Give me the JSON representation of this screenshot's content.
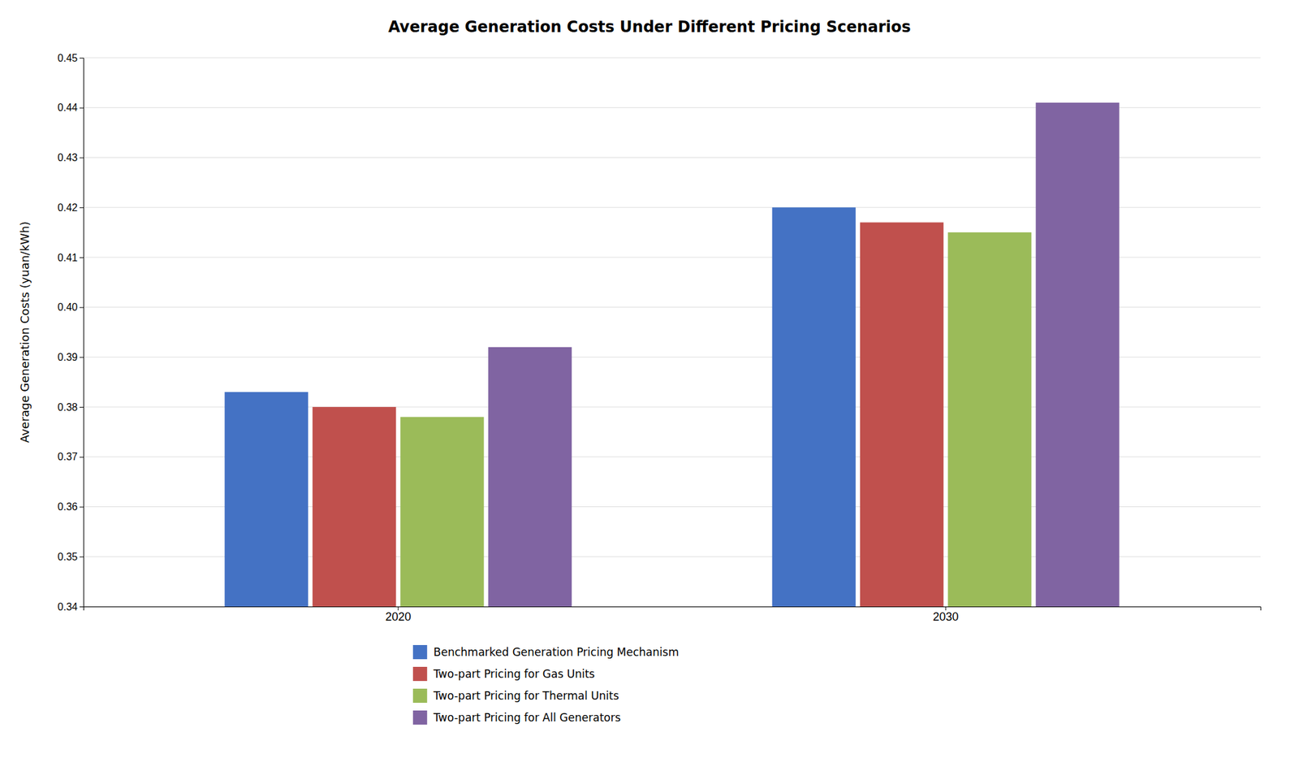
{
  "chart_data": {
    "type": "bar",
    "title": "Average Generation Costs Under Different Pricing Scenarios",
    "ylabel": "Average Generation Costs (yuan/kWh)",
    "categories": [
      "2020",
      "2030"
    ],
    "series": [
      {
        "name": "Benchmarked Generation Pricing Mechanism",
        "color": "#4472C4",
        "values": [
          0.383,
          0.42
        ]
      },
      {
        "name": "Two-part Pricing for Gas Units",
        "color": "#C0504D",
        "values": [
          0.38,
          0.417
        ]
      },
      {
        "name": "Two-part Pricing for Thermal Units",
        "color": "#9BBB59",
        "values": [
          0.378,
          0.415
        ]
      },
      {
        "name": "Two-part Pricing for All Generators",
        "color": "#8064A2",
        "values": [
          0.392,
          0.441
        ]
      }
    ],
    "ylim": [
      0.34,
      0.45
    ],
    "yticks": [
      0.34,
      0.35,
      0.36,
      0.37,
      0.38,
      0.39,
      {
        "value": 0.4,
        "label": "0.40"
      },
      0.41,
      0.42,
      0.43,
      0.44,
      0.45
    ],
    "grid": true,
    "legend": "bottom"
  }
}
